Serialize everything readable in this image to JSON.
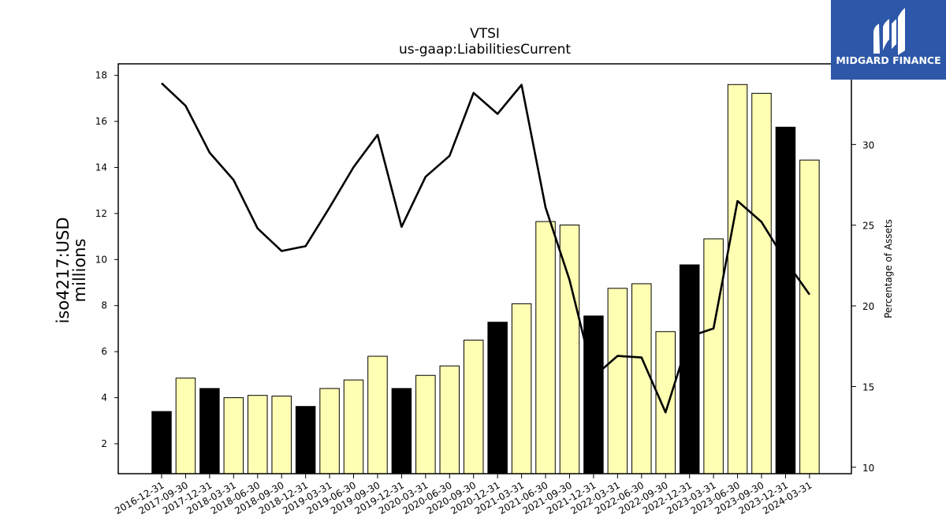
{
  "logo": {
    "text": "MIDGARD FINANCE",
    "bg_color": "#2d57a8"
  },
  "chart_data": {
    "type": "bar",
    "title": "VTSI",
    "subtitle": "us-gaap:LiabilitiesCurrent",
    "ylabel_left_line1": "iso4217:USD",
    "ylabel_left_line2": "millions",
    "ylabel_right": "Percentage of Assets",
    "categories": [
      "2016-12-31",
      "2017-09-30",
      "2017-12-31",
      "2018-03-31",
      "2018-06-30",
      "2018-09-30",
      "2018-12-31",
      "2019-03-31",
      "2019-06-30",
      "2019-09-30",
      "2019-12-31",
      "2020-03-31",
      "2020-06-30",
      "2020-09-30",
      "2020-12-31",
      "2021-03-31",
      "2021-06-30",
      "2021-09-30",
      "2021-12-31",
      "2022-03-31",
      "2022-06-30",
      "2022-09-30",
      "2022-12-31",
      "2023-03-31",
      "2023-06-30",
      "2023-09-30",
      "2023-12-31",
      "2024-03-31"
    ],
    "series": [
      {
        "values": [
          3.4,
          4.85,
          4.4,
          4.0,
          4.1,
          4.07,
          3.62,
          4.4,
          4.77,
          5.8,
          4.4,
          4.97,
          5.38,
          6.5,
          7.28,
          8.08,
          11.65,
          11.5,
          7.55,
          8.75,
          8.95,
          6.87,
          9.77,
          10.9,
          17.6,
          17.22,
          15.75,
          14.32
        ]
      },
      {
        "axis": "right",
        "type": "line",
        "values": [
          33.8,
          32.4,
          29.5,
          27.8,
          24.8,
          23.4,
          23.7,
          26.1,
          28.6,
          30.6,
          24.9,
          28.0,
          29.3,
          33.2,
          31.9,
          33.7,
          26.1,
          21.6,
          15.6,
          16.9,
          16.8,
          13.4,
          18.1,
          18.6,
          26.5,
          25.2,
          22.8,
          20.7
        ]
      }
    ],
    "annual_categories": [
      "2016-12-31",
      "2017-12-31",
      "2018-12-31",
      "2019-12-31",
      "2020-12-31",
      "2021-12-31",
      "2022-12-31",
      "2023-12-31"
    ],
    "colors": {
      "annual": "#000000",
      "quarterly": "#ffffb3",
      "line": "#000000",
      "edge": "#000000"
    },
    "y_left": {
      "ylim": [
        0.7,
        18.5
      ],
      "ticks": [
        2,
        4,
        6,
        8,
        10,
        12,
        14,
        16,
        18
      ]
    },
    "y_right": {
      "ylim": [
        9.6,
        35.0
      ],
      "ticks": [
        10,
        15,
        20,
        25,
        30
      ]
    },
    "grid": false,
    "legend": "none"
  }
}
